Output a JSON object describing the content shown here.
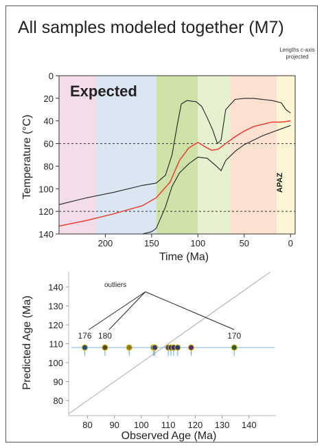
{
  "title": "All samples modeled  together (M7)",
  "note": [
    "Lengths c-axis",
    "projected"
  ],
  "chart_data": [
    {
      "type": "line",
      "panel_label": "Expected",
      "zone_label": "APAZ",
      "xlabel": "Time (Ma)",
      "ylabel": "Temperature (°C)",
      "xlim": [
        250,
        -5
      ],
      "ylim": [
        140,
        0
      ],
      "xticks": [
        200,
        150,
        100,
        50,
        0
      ],
      "yticks": [
        0,
        20,
        40,
        60,
        80,
        100,
        120,
        140
      ],
      "apaz_bounds": [
        60,
        120
      ],
      "bands": [
        {
          "from": 250,
          "to": 210,
          "color": "#f3dde8"
        },
        {
          "from": 210,
          "to": 145,
          "color": "#dbe6f3"
        },
        {
          "from": 145,
          "to": 100,
          "color": "#cfe3a8"
        },
        {
          "from": 100,
          "to": 65,
          "color": "#e7f1cf"
        },
        {
          "from": 65,
          "to": 15,
          "color": "#fbe1cf"
        },
        {
          "from": 15,
          "to": -5,
          "color": "#fdf6d4"
        }
      ],
      "series": [
        {
          "role": "expected",
          "color": "#e8453c",
          "x": [
            250,
            220,
            190,
            160,
            145,
            130,
            120,
            110,
            100,
            92,
            85,
            78,
            70,
            60,
            50,
            40,
            30,
            20,
            10,
            0
          ],
          "y": [
            133,
            128,
            122,
            115,
            108,
            94,
            75,
            64,
            59,
            63,
            66,
            65,
            60,
            54,
            49,
            45,
            43,
            41,
            41,
            40
          ]
        },
        {
          "role": "upper-envelope",
          "color": "#222222",
          "x": [
            250,
            220,
            190,
            160,
            145,
            135,
            128,
            122,
            118,
            112,
            102,
            96,
            90,
            84,
            79,
            75,
            70,
            60,
            50,
            40,
            30,
            20,
            10,
            5,
            0
          ],
          "y": [
            114,
            108,
            103,
            97,
            95,
            88,
            70,
            42,
            25,
            22,
            23,
            27,
            37,
            48,
            60,
            57,
            30,
            21,
            20,
            20,
            21,
            22,
            24,
            30,
            33
          ]
        },
        {
          "role": "lower-envelope",
          "color": "#222222",
          "x": [
            160,
            150,
            145,
            135,
            128,
            120,
            110,
            100,
            90,
            80,
            75,
            70,
            60,
            50,
            40,
            30,
            20,
            10,
            0
          ],
          "y": [
            140,
            138,
            135,
            116,
            98,
            86,
            78,
            72,
            73,
            80,
            84,
            75,
            67,
            61,
            57,
            53,
            50,
            47,
            44
          ]
        }
      ]
    },
    {
      "type": "scatter",
      "xlabel": "Observed Age (Ma)",
      "ylabel": "Predicted Age (Ma)",
      "xlim": [
        73,
        150
      ],
      "ylim": [
        72,
        148
      ],
      "xticks": [
        80,
        90,
        100,
        110,
        120,
        130,
        140
      ],
      "yticks": [
        80,
        90,
        100,
        110,
        120,
        130,
        140
      ],
      "reference_line": "1:1",
      "annotation": "outliers",
      "points": [
        {
          "x": 79,
          "y": 108,
          "color": "#1f4e78",
          "label": "176"
        },
        {
          "x": 86.5,
          "y": 108,
          "color": "#5a4a10",
          "label": "180"
        },
        {
          "x": 95.5,
          "y": 108,
          "color": "#8a7a1a"
        },
        {
          "x": 104.5,
          "y": 108,
          "color": "#2e5e3a"
        },
        {
          "x": 105,
          "y": 108,
          "color": "#3a3a6e"
        },
        {
          "x": 110,
          "y": 108,
          "color": "#4a3a8a"
        },
        {
          "x": 111,
          "y": 108,
          "color": "#2c2c5e"
        },
        {
          "x": 112,
          "y": 108,
          "color": "#3a2a7a"
        },
        {
          "x": 113.5,
          "y": 108,
          "color": "#2a3a6a"
        },
        {
          "x": 118.5,
          "y": 108,
          "color": "#5a2a6e"
        },
        {
          "x": 134.5,
          "y": 108,
          "color": "#2e5a2e",
          "label": "170"
        }
      ]
    }
  ]
}
